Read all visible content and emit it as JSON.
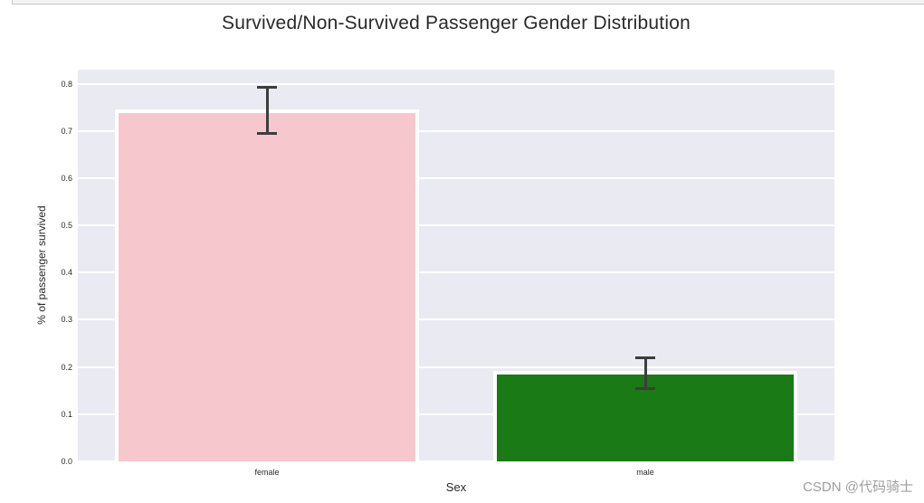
{
  "chart_data": {
    "type": "bar",
    "title": "Survived/Non-Survived Passenger Gender Distribution",
    "xlabel": "Sex",
    "ylabel": "% of passenger survived",
    "categories": [
      "female",
      "male"
    ],
    "values": [
      0.742,
      0.188
    ],
    "error_bars": [
      {
        "low": 0.695,
        "high": 0.793
      },
      {
        "low": 0.155,
        "high": 0.22
      }
    ],
    "bar_colors": [
      "#f7c7ce",
      "#1a7a16"
    ],
    "bar_edge_color": "#ffffff",
    "error_bar_color": "#3d3d3d",
    "ylim": [
      0,
      0.83
    ],
    "yticks": [
      0.0,
      0.1,
      0.2,
      0.3,
      0.4,
      0.5,
      0.6,
      0.7,
      0.8
    ],
    "grid": "horizontal",
    "plot_background": "#eaeaf2",
    "gridline_color": "#ffffff",
    "legend": "none"
  },
  "watermark": {
    "text": "CSDN @代码骑士",
    "color": "#9e9e9e"
  }
}
